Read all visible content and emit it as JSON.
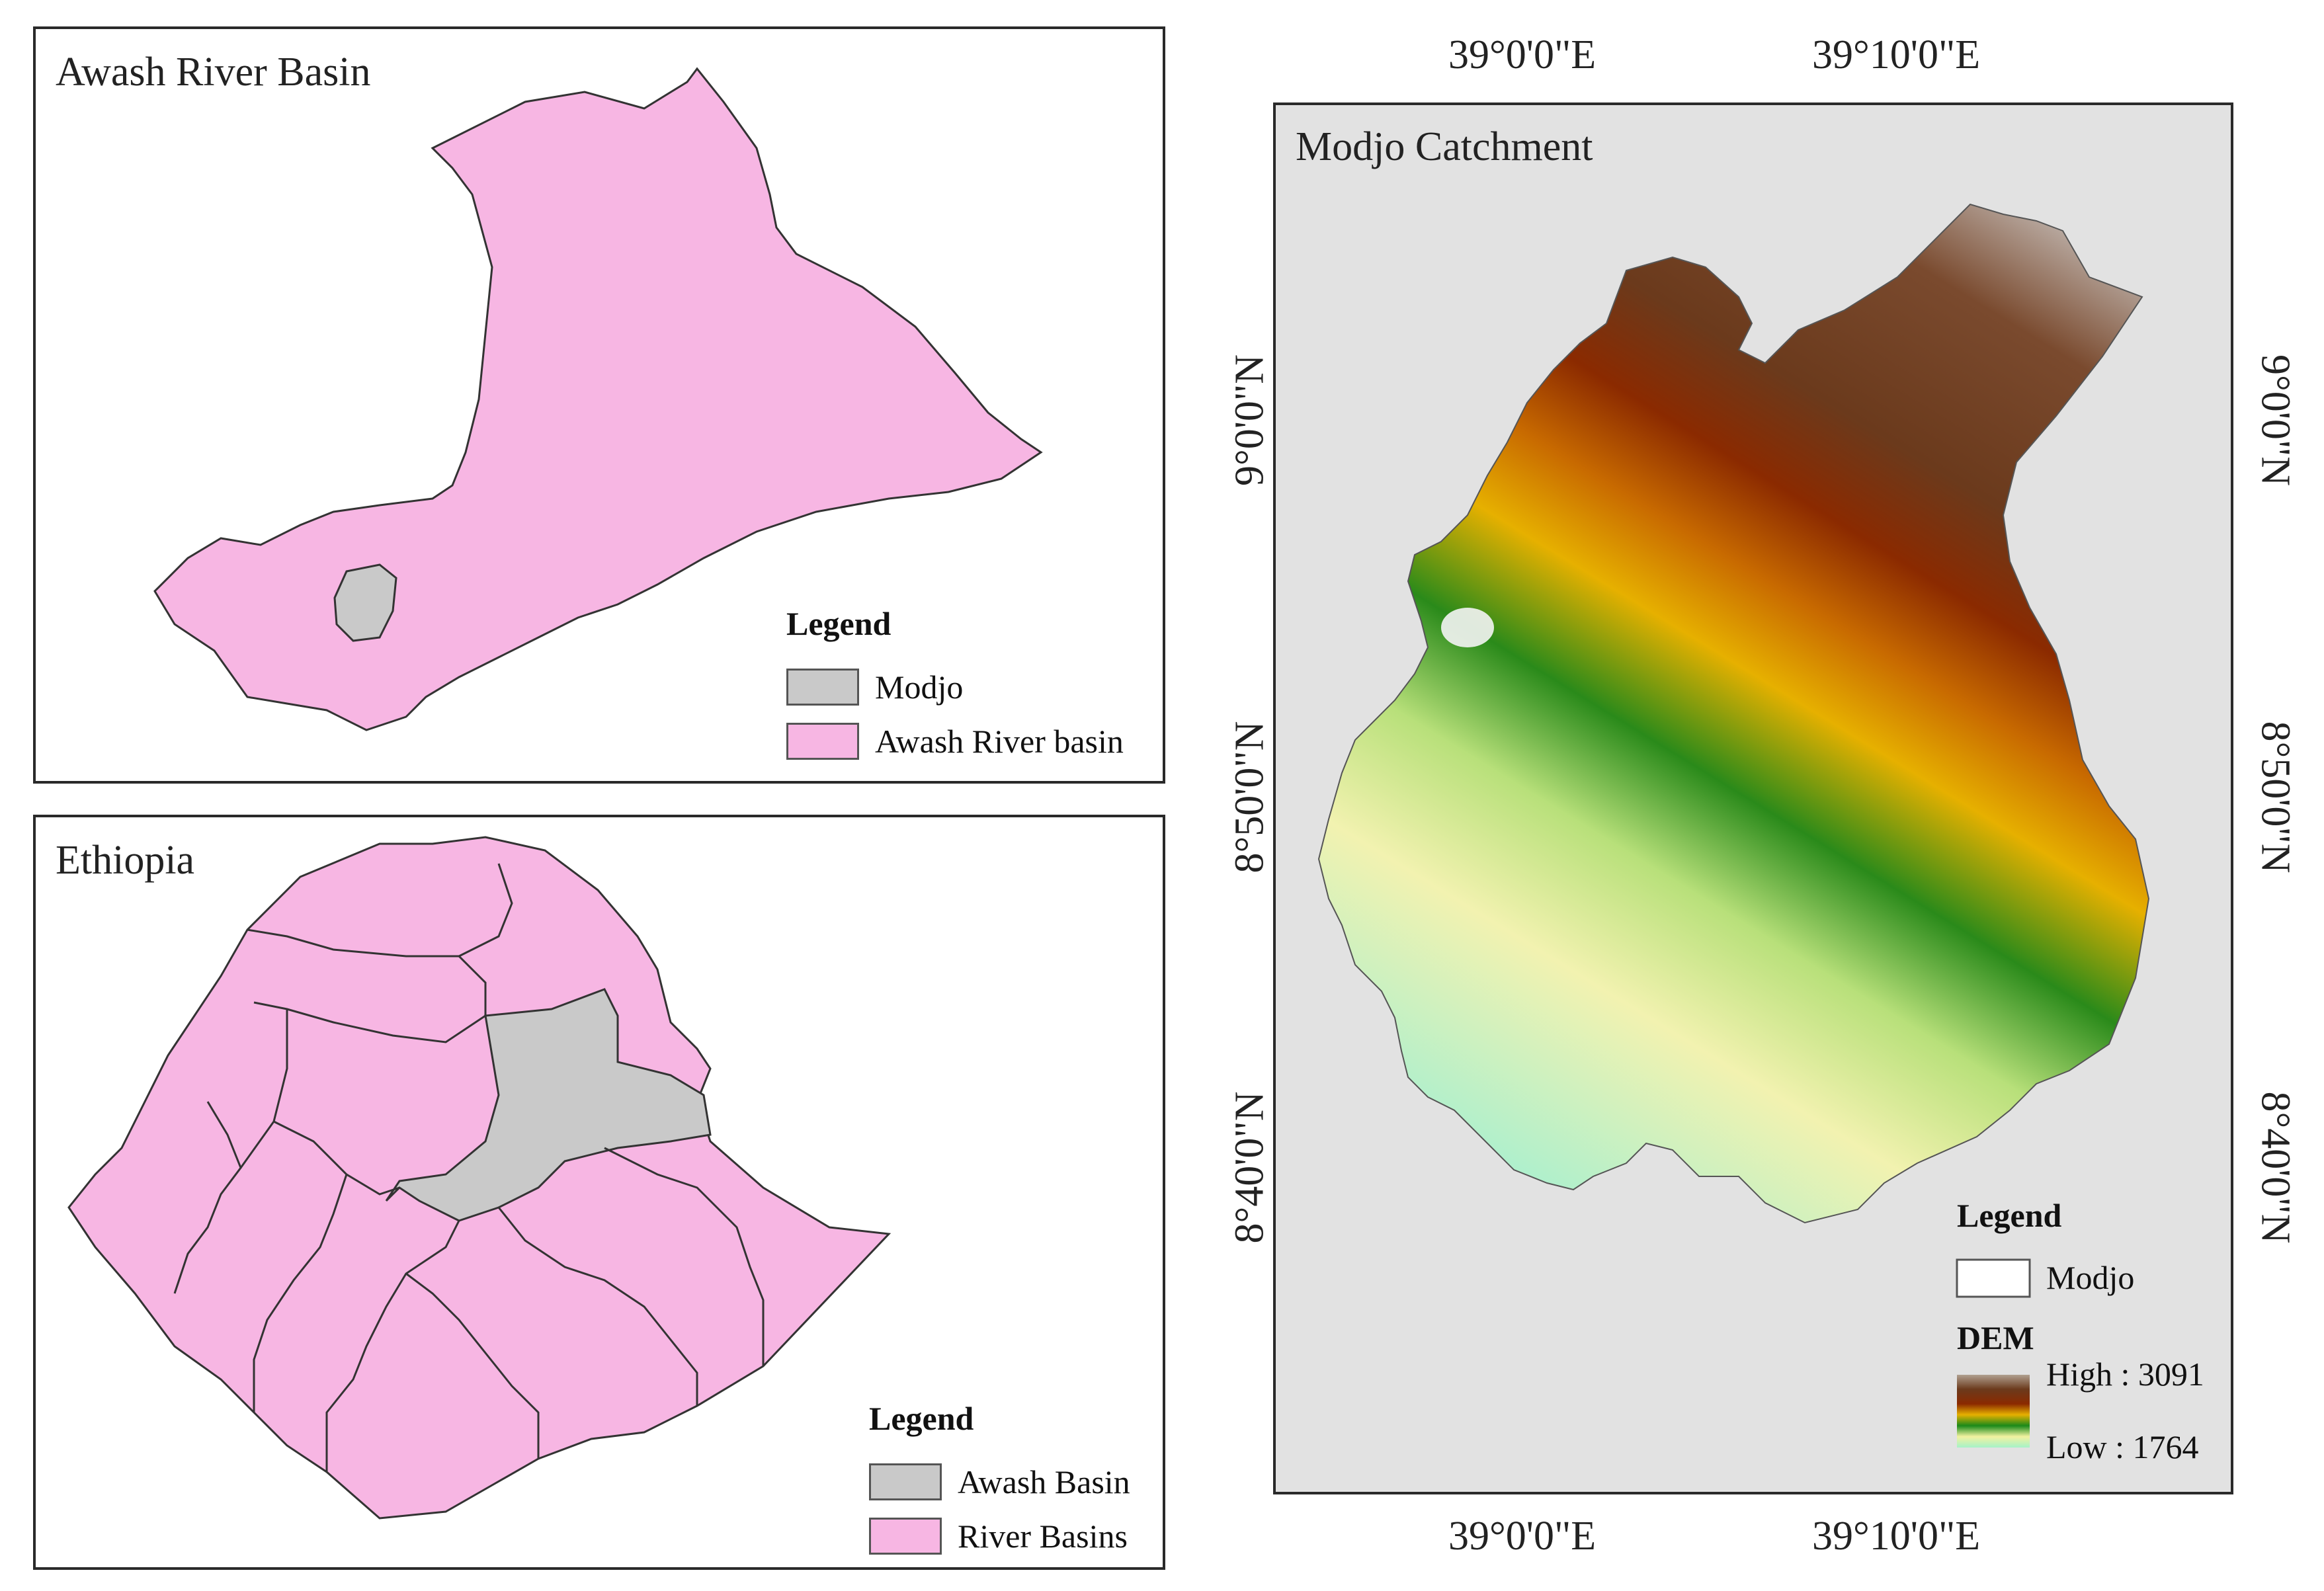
{
  "awash_panel": {
    "title": "Awash River Basin",
    "legend": {
      "title": "Legend",
      "items": [
        {
          "label": "Modjo",
          "color": "#c9c9c9"
        },
        {
          "label": "Awash River basin",
          "color": "#f7b6e3"
        }
      ]
    }
  },
  "ethiopia_panel": {
    "title": "Ethiopia",
    "legend": {
      "title": "Legend",
      "items": [
        {
          "label": "Awash Basin",
          "color": "#c9c9c9"
        },
        {
          "label": "River Basins",
          "color": "#f7b6e3"
        }
      ]
    }
  },
  "modjo_panel": {
    "title": "Modjo Catchment",
    "top_labels": [
      "39°0'0\"E",
      "39°10'0\"E"
    ],
    "bottom_labels": [
      "39°0'0\"E",
      "39°10'0\"E"
    ],
    "left_labels": [
      "9°0'0\"N",
      "8°50'0\"N",
      "8°40'0\"N"
    ],
    "right_labels": [
      "9°0'0\"N",
      "8°50'0\"N",
      "8°40'0\"N"
    ],
    "legend": {
      "title": "Legend",
      "modjo_label": "Modjo",
      "dem_title": "DEM",
      "high_label": "High : 3091",
      "low_label": "Low : 1764",
      "ramp_colors": [
        "#7a4a2a",
        "#8b2a00",
        "#e0a000",
        "#1a8a1a",
        "#f2f2a0",
        "#a6f2c8"
      ]
    }
  }
}
